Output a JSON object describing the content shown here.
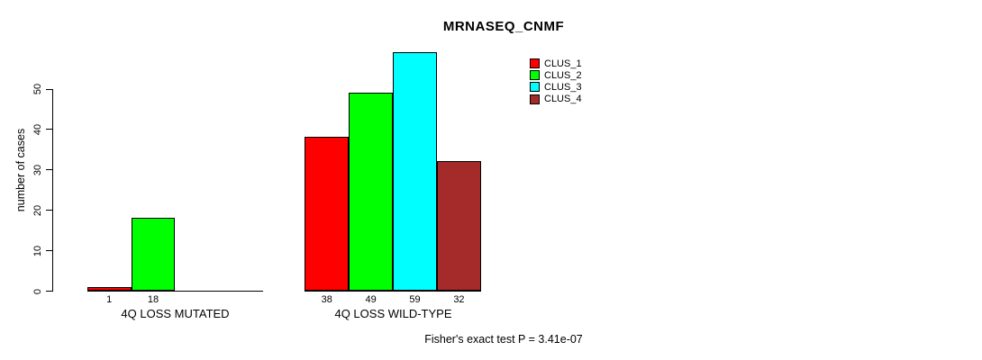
{
  "title": "MRNASEQ_CNMF",
  "y_axis": {
    "label": "number of cases",
    "ticks": [
      0,
      10,
      20,
      30,
      40,
      50
    ]
  },
  "legend": {
    "items": [
      {
        "label": "CLUS_1",
        "color": "#FF0000"
      },
      {
        "label": "CLUS_2",
        "color": "#00FF00"
      },
      {
        "label": "CLUS_3",
        "color": "#00FFFF"
      },
      {
        "label": "CLUS_4",
        "color": "#A52A2A"
      }
    ]
  },
  "footer": {
    "stat_note": "Fisher's exact test P = 3.41e-07"
  },
  "chart_data": {
    "type": "bar",
    "title": "MRNASEQ_CNMF",
    "ylabel": "number of cases",
    "xlabel": "",
    "ylim": [
      0,
      59
    ],
    "grid": false,
    "legend_position": "top-right",
    "categories": [
      "4Q LOSS MUTATED",
      "4Q LOSS WILD-TYPE"
    ],
    "series": [
      {
        "name": "CLUS_1",
        "color": "#FF0000",
        "values": [
          1,
          38
        ]
      },
      {
        "name": "CLUS_2",
        "color": "#00FF00",
        "values": [
          18,
          49
        ]
      },
      {
        "name": "CLUS_3",
        "color": "#00FFFF",
        "values": [
          0,
          59
        ]
      },
      {
        "name": "CLUS_4",
        "color": "#A52A2A",
        "values": [
          0,
          32
        ]
      }
    ],
    "bar_labels_note": "zero-value bars are drawn as flat baseline segments and carry no numeric label"
  }
}
